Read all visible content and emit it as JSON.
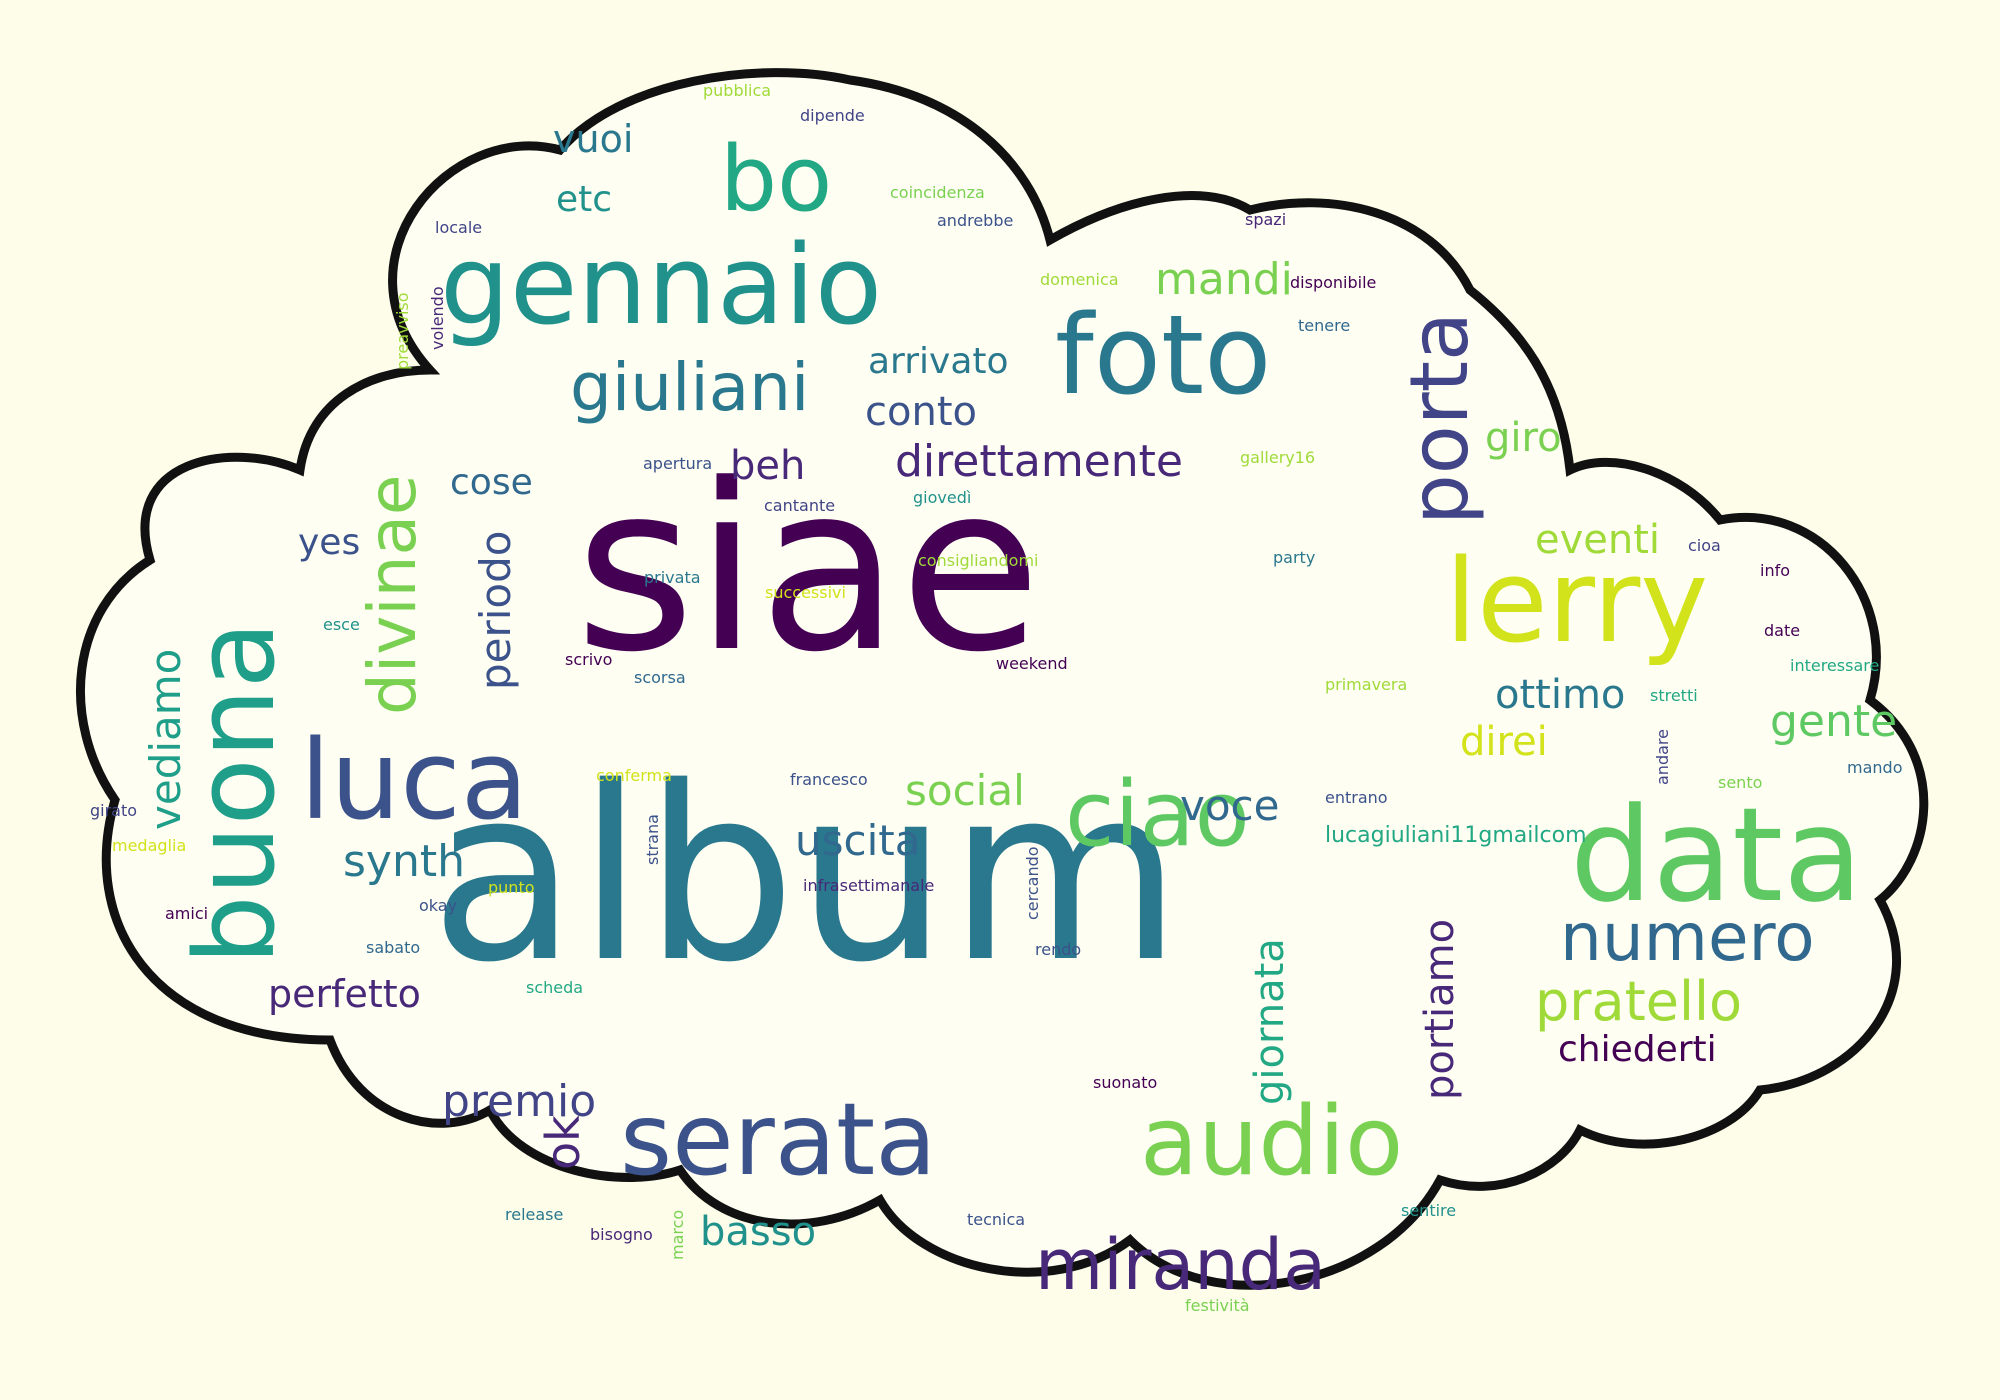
{
  "palette": {
    "background": "#fdfdea",
    "cloud_fill": "#fefef2",
    "cloud_outline": "#111111"
  },
  "words": [
    {
      "text": "siae",
      "color": "#440154"
    },
    {
      "text": "album",
      "color": "#2a788e"
    },
    {
      "text": "gennaio",
      "color": "#21918c"
    },
    {
      "text": "foto",
      "color": "#2a788e"
    },
    {
      "text": "bo",
      "color": "#22a884"
    },
    {
      "text": "data",
      "color": "#5ec962"
    },
    {
      "text": "serata",
      "color": "#3b528b"
    },
    {
      "text": "audio",
      "color": "#7ad151"
    },
    {
      "text": "lerry",
      "color": "#d2e21b"
    },
    {
      "text": "buona",
      "color": "#1f9e89"
    },
    {
      "text": "luca",
      "color": "#3b528b"
    },
    {
      "text": "ciao",
      "color": "#5ec962"
    },
    {
      "text": "giuliani",
      "color": "#2a788e"
    },
    {
      "text": "miranda",
      "color": "#482878"
    },
    {
      "text": "numero",
      "color": "#31688e"
    },
    {
      "text": "porta",
      "color": "#414487"
    },
    {
      "text": "direttamente",
      "color": "#482878"
    },
    {
      "text": "divinae",
      "color": "#7ad151"
    },
    {
      "text": "pratello",
      "color": "#a0da39"
    },
    {
      "text": "vediamo",
      "color": "#1f9e89"
    },
    {
      "text": "periodo",
      "color": "#3b528b"
    },
    {
      "text": "mandi",
      "color": "#7ad151"
    },
    {
      "text": "conto",
      "color": "#3b528b"
    },
    {
      "text": "synth",
      "color": "#2a788e"
    },
    {
      "text": "social",
      "color": "#7ad151"
    },
    {
      "text": "uscita",
      "color": "#31688e"
    },
    {
      "text": "voce",
      "color": "#31688e"
    },
    {
      "text": "ottimo",
      "color": "#2a788e"
    },
    {
      "text": "gente",
      "color": "#5ec962"
    },
    {
      "text": "eventi",
      "color": "#a0da39"
    },
    {
      "text": "direi",
      "color": "#d2e21b"
    },
    {
      "text": "giro",
      "color": "#7ad151"
    },
    {
      "text": "arrivato",
      "color": "#2a788e"
    },
    {
      "text": "beh",
      "color": "#482878"
    },
    {
      "text": "cose",
      "color": "#31688e"
    },
    {
      "text": "yes",
      "color": "#3b528b"
    },
    {
      "text": "vuoi",
      "color": "#2a788e"
    },
    {
      "text": "etc",
      "color": "#21918c"
    },
    {
      "text": "premio",
      "color": "#414487"
    },
    {
      "text": "perfetto",
      "color": "#482878"
    },
    {
      "text": "basso",
      "color": "#21918c"
    },
    {
      "text": "chiederti",
      "color": "#440154"
    },
    {
      "text": "giornata",
      "color": "#22a884"
    },
    {
      "text": "portiamo",
      "color": "#482878"
    },
    {
      "text": "ok",
      "color": "#482878"
    },
    {
      "text": "lucagiuliani11gmailcom",
      "color": "#22a884"
    },
    {
      "text": "pubblica",
      "color": "#a0da39"
    },
    {
      "text": "dipende",
      "color": "#414487"
    },
    {
      "text": "coincidenza",
      "color": "#7ad151"
    },
    {
      "text": "andrebbe",
      "color": "#3b528b"
    },
    {
      "text": "locale",
      "color": "#414487"
    },
    {
      "text": "spazi",
      "color": "#482878"
    },
    {
      "text": "domenica",
      "color": "#a0da39"
    },
    {
      "text": "disponibile",
      "color": "#440154"
    },
    {
      "text": "preavviso",
      "color": "#a0da39"
    },
    {
      "text": "volendo",
      "color": "#482878"
    },
    {
      "text": "tenere",
      "color": "#31688e"
    },
    {
      "text": "gallery16",
      "color": "#a0da39"
    },
    {
      "text": "apertura",
      "color": "#3b528b"
    },
    {
      "text": "giovedì",
      "color": "#21918c"
    },
    {
      "text": "cantante",
      "color": "#414487"
    },
    {
      "text": "consigliandomi",
      "color": "#a0da39"
    },
    {
      "text": "party",
      "color": "#2a788e"
    },
    {
      "text": "cioa",
      "color": "#414487"
    },
    {
      "text": "info",
      "color": "#440154"
    },
    {
      "text": "privata",
      "color": "#2a788e"
    },
    {
      "text": "successivi",
      "color": "#d2e21b"
    },
    {
      "text": "esce",
      "color": "#21918c"
    },
    {
      "text": "date",
      "color": "#440154"
    },
    {
      "text": "interessare",
      "color": "#22a884"
    },
    {
      "text": "scrivo",
      "color": "#440154"
    },
    {
      "text": "scorsa",
      "color": "#31688e"
    },
    {
      "text": "weekend",
      "color": "#440154"
    },
    {
      "text": "primavera",
      "color": "#a0da39"
    },
    {
      "text": "stretti",
      "color": "#22a884"
    },
    {
      "text": "andare",
      "color": "#414487"
    },
    {
      "text": "sento",
      "color": "#7ad151"
    },
    {
      "text": "mando",
      "color": "#31688e"
    },
    {
      "text": "conferma",
      "color": "#d2e21b"
    },
    {
      "text": "francesco",
      "color": "#3b528b"
    },
    {
      "text": "entrano",
      "color": "#3b528b"
    },
    {
      "text": "girato",
      "color": "#414487"
    },
    {
      "text": "medaglia",
      "color": "#d2e21b"
    },
    {
      "text": "strana",
      "color": "#3b528b"
    },
    {
      "text": "punto",
      "color": "#d2e21b"
    },
    {
      "text": "okay",
      "color": "#3b528b"
    },
    {
      "text": "infrasettimanale",
      "color": "#482878"
    },
    {
      "text": "cercando",
      "color": "#3b528b"
    },
    {
      "text": "amici",
      "color": "#440154"
    },
    {
      "text": "sabato",
      "color": "#31688e"
    },
    {
      "text": "rendo",
      "color": "#3b528b"
    },
    {
      "text": "scheda",
      "color": "#22a884"
    },
    {
      "text": "suonato",
      "color": "#440154"
    },
    {
      "text": "release",
      "color": "#2a788e"
    },
    {
      "text": "bisogno",
      "color": "#482878"
    },
    {
      "text": "marco",
      "color": "#7ad151"
    },
    {
      "text": "tecnica",
      "color": "#3b528b"
    },
    {
      "text": "sentire",
      "color": "#21918c"
    },
    {
      "text": "festività",
      "color": "#7ad151"
    }
  ]
}
